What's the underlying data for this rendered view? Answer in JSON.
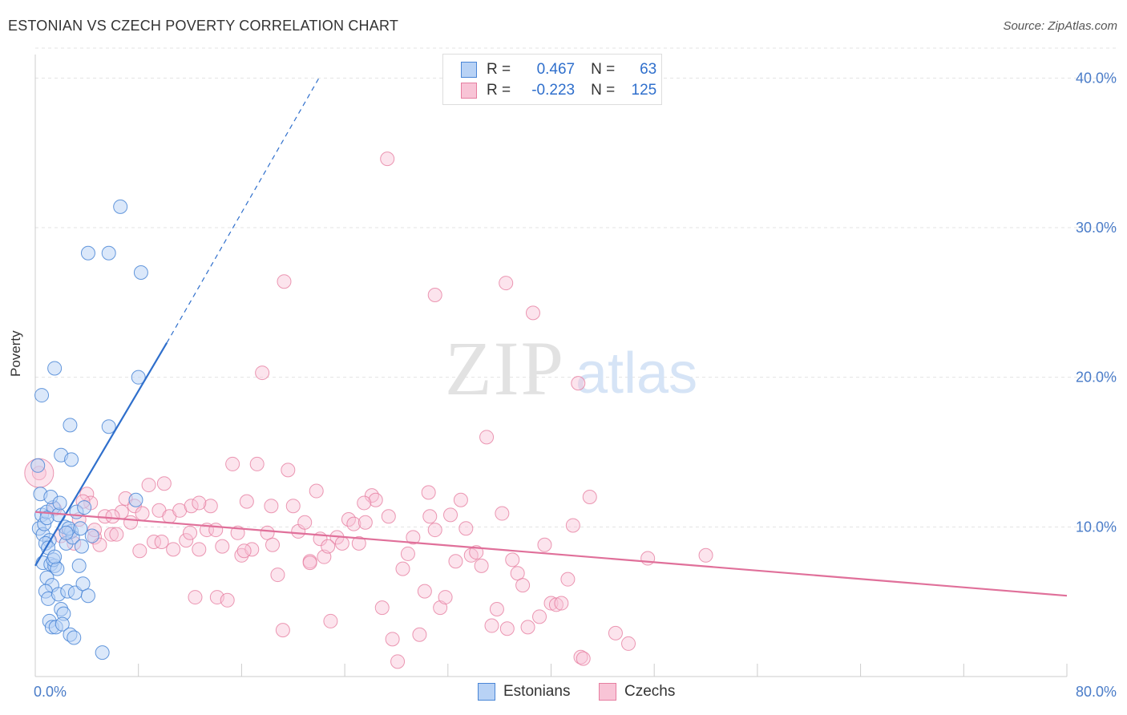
{
  "title": "ESTONIAN VS CZECH POVERTY CORRELATION CHART",
  "source": "Source: ZipAtlas.com",
  "watermark": {
    "zip": "ZIP",
    "atlas": "atlas"
  },
  "legend": {
    "rows": [
      {
        "r_label": "R =",
        "r_value": "0.467",
        "n_label": "N =",
        "n_value": "63"
      },
      {
        "r_label": "R =",
        "r_value": "-0.223",
        "n_label": "N =",
        "n_value": "125"
      }
    ]
  },
  "bottom_legend": {
    "estonians": "Estonians",
    "czechs": "Czechs"
  },
  "colors": {
    "estonian_fill": "#b8d2f5",
    "estonian_stroke": "#4a86d6",
    "estonian_line": "#2f6fcc",
    "czech_fill": "#f8c4d6",
    "czech_stroke": "#e67ea0",
    "czech_line": "#e0709a",
    "tick_text": "#4a7cc8",
    "grid": "#e3e3e3"
  },
  "chart_data": {
    "type": "scatter",
    "title": "ESTONIAN VS CZECH POVERTY CORRELATION CHART",
    "xlabel": "",
    "ylabel": "Poverty",
    "xlim": [
      0,
      80
    ],
    "ylim": [
      0,
      42
    ],
    "x_tick_labels": [
      "0.0%",
      "80.0%"
    ],
    "y_ticks": [
      10,
      20,
      30,
      40
    ],
    "y_tick_labels": [
      "10.0%",
      "20.0%",
      "30.0%",
      "40.0%"
    ],
    "grid": true,
    "legend_placement": "top-center",
    "series": [
      {
        "name": "Estonians",
        "points": [
          [
            0.2,
            14.1
          ],
          [
            0.4,
            12.2
          ],
          [
            0.5,
            10.8
          ],
          [
            0.3,
            9.9
          ],
          [
            0.6,
            9.5
          ],
          [
            0.7,
            10.2
          ],
          [
            0.9,
            11.0
          ],
          [
            1.1,
            9.1
          ],
          [
            0.8,
            8.9
          ],
          [
            1.0,
            8.6
          ],
          [
            0.6,
            7.6
          ],
          [
            1.2,
            7.5
          ],
          [
            1.5,
            7.4
          ],
          [
            1.4,
            7.8
          ],
          [
            1.7,
            7.2
          ],
          [
            0.9,
            6.6
          ],
          [
            1.3,
            6.1
          ],
          [
            0.8,
            5.7
          ],
          [
            1.0,
            5.2
          ],
          [
            1.8,
            5.5
          ],
          [
            2.0,
            4.5
          ],
          [
            2.2,
            4.2
          ],
          [
            1.1,
            3.7
          ],
          [
            1.3,
            3.3
          ],
          [
            1.6,
            3.3
          ],
          [
            2.1,
            3.5
          ],
          [
            2.7,
            2.8
          ],
          [
            3.0,
            2.6
          ],
          [
            1.4,
            11.3
          ],
          [
            1.8,
            10.8
          ],
          [
            2.3,
            10.0
          ],
          [
            2.8,
            9.7
          ],
          [
            3.2,
            11.0
          ],
          [
            3.8,
            11.3
          ],
          [
            2.4,
            8.9
          ],
          [
            2.9,
            9.3
          ],
          [
            3.6,
            8.7
          ],
          [
            4.4,
            9.4
          ],
          [
            3.4,
            7.4
          ],
          [
            2.5,
            5.7
          ],
          [
            3.1,
            5.6
          ],
          [
            3.7,
            6.2
          ],
          [
            4.1,
            5.4
          ],
          [
            2.0,
            14.8
          ],
          [
            2.8,
            14.5
          ],
          [
            0.5,
            18.8
          ],
          [
            2.7,
            16.8
          ],
          [
            5.7,
            16.7
          ],
          [
            1.5,
            20.6
          ],
          [
            8.0,
            20.0
          ],
          [
            4.1,
            28.3
          ],
          [
            5.7,
            28.3
          ],
          [
            6.6,
            31.4
          ],
          [
            8.2,
            27.0
          ],
          [
            7.8,
            11.8
          ],
          [
            5.2,
            1.6
          ],
          [
            1.5,
            8.0
          ],
          [
            0.9,
            10.6
          ],
          [
            1.2,
            12.0
          ],
          [
            2.6,
            9.9
          ],
          [
            3.5,
            9.9
          ],
          [
            1.9,
            11.6
          ],
          [
            2.4,
            9.6
          ]
        ],
        "trend": {
          "x": [
            0.0,
            10.2
          ],
          "y": [
            7.4,
            22.3
          ],
          "dash_to": [
            22.0,
            40.0
          ]
        }
      },
      {
        "name": "Czechs",
        "points": [
          [
            0.3,
            13.6
          ],
          [
            1.5,
            11.2
          ],
          [
            2.0,
            9.4
          ],
          [
            2.6,
            9.6
          ],
          [
            3.0,
            8.9
          ],
          [
            3.4,
            10.5
          ],
          [
            4.0,
            12.2
          ],
          [
            4.3,
            11.6
          ],
          [
            4.6,
            9.3
          ],
          [
            5.0,
            8.8
          ],
          [
            5.4,
            10.7
          ],
          [
            5.9,
            9.5
          ],
          [
            6.3,
            9.5
          ],
          [
            6.7,
            11.0
          ],
          [
            7.0,
            11.9
          ],
          [
            7.4,
            10.3
          ],
          [
            7.7,
            11.4
          ],
          [
            8.1,
            8.4
          ],
          [
            8.3,
            10.9
          ],
          [
            8.8,
            12.8
          ],
          [
            9.2,
            9.0
          ],
          [
            9.6,
            11.1
          ],
          [
            10.0,
            12.9
          ],
          [
            10.4,
            10.7
          ],
          [
            10.7,
            8.5
          ],
          [
            11.2,
            11.1
          ],
          [
            11.7,
            9.1
          ],
          [
            12.1,
            11.4
          ],
          [
            12.4,
            5.3
          ],
          [
            12.7,
            8.5
          ],
          [
            13.3,
            9.8
          ],
          [
            13.6,
            11.4
          ],
          [
            14.1,
            5.3
          ],
          [
            14.5,
            8.7
          ],
          [
            14.9,
            5.1
          ],
          [
            15.3,
            14.2
          ],
          [
            15.7,
            9.6
          ],
          [
            16.0,
            8.1
          ],
          [
            16.4,
            11.7
          ],
          [
            16.8,
            8.5
          ],
          [
            17.2,
            14.2
          ],
          [
            17.6,
            20.3
          ],
          [
            18.0,
            9.6
          ],
          [
            18.4,
            8.8
          ],
          [
            18.8,
            6.8
          ],
          [
            19.2,
            3.1
          ],
          [
            19.6,
            13.8
          ],
          [
            20.0,
            11.4
          ],
          [
            20.4,
            9.7
          ],
          [
            20.9,
            10.3
          ],
          [
            21.3,
            7.7
          ],
          [
            21.8,
            12.4
          ],
          [
            22.1,
            9.2
          ],
          [
            22.4,
            8.0
          ],
          [
            22.9,
            3.7
          ],
          [
            23.4,
            9.3
          ],
          [
            23.8,
            8.9
          ],
          [
            24.3,
            10.5
          ],
          [
            24.7,
            10.2
          ],
          [
            25.1,
            8.9
          ],
          [
            25.6,
            10.3
          ],
          [
            26.1,
            12.1
          ],
          [
            26.4,
            11.8
          ],
          [
            26.9,
            4.6
          ],
          [
            27.3,
            34.6
          ],
          [
            27.7,
            2.5
          ],
          [
            28.1,
            1.0
          ],
          [
            28.5,
            7.2
          ],
          [
            28.9,
            8.2
          ],
          [
            29.3,
            9.3
          ],
          [
            29.8,
            2.8
          ],
          [
            30.2,
            5.7
          ],
          [
            30.6,
            10.7
          ],
          [
            31.0,
            9.8
          ],
          [
            31.4,
            4.6
          ],
          [
            31.8,
            5.3
          ],
          [
            32.2,
            10.8
          ],
          [
            32.6,
            7.7
          ],
          [
            33.0,
            11.8
          ],
          [
            33.4,
            9.9
          ],
          [
            33.8,
            8.1
          ],
          [
            34.2,
            8.3
          ],
          [
            34.6,
            7.4
          ],
          [
            35.0,
            16.0
          ],
          [
            35.4,
            3.4
          ],
          [
            35.8,
            4.5
          ],
          [
            36.2,
            10.9
          ],
          [
            36.6,
            3.2
          ],
          [
            37.0,
            7.8
          ],
          [
            37.4,
            6.9
          ],
          [
            37.8,
            6.1
          ],
          [
            38.2,
            3.3
          ],
          [
            38.6,
            24.3
          ],
          [
            39.1,
            4.0
          ],
          [
            39.5,
            8.8
          ],
          [
            40.0,
            4.9
          ],
          [
            40.4,
            4.8
          ],
          [
            40.8,
            4.9
          ],
          [
            41.3,
            6.5
          ],
          [
            41.7,
            10.1
          ],
          [
            42.1,
            19.6
          ],
          [
            42.3,
            1.3
          ],
          [
            42.5,
            1.2
          ],
          [
            43.0,
            12.0
          ],
          [
            45.0,
            2.9
          ],
          [
            46.0,
            2.2
          ],
          [
            47.5,
            7.9
          ],
          [
            52.0,
            8.1
          ],
          [
            36.5,
            26.3
          ],
          [
            19.3,
            26.4
          ],
          [
            31.0,
            25.5
          ],
          [
            9.8,
            9.0
          ],
          [
            12.0,
            9.6
          ],
          [
            14.0,
            9.8
          ],
          [
            6.0,
            10.7
          ],
          [
            3.7,
            11.7
          ],
          [
            4.6,
            9.8
          ],
          [
            22.7,
            8.7
          ],
          [
            25.5,
            11.6
          ],
          [
            30.5,
            12.3
          ],
          [
            12.7,
            11.6
          ],
          [
            21.3,
            7.6
          ],
          [
            27.4,
            10.7
          ],
          [
            16.2,
            8.4
          ],
          [
            18.3,
            11.4
          ]
        ],
        "trend": {
          "x": [
            0.0,
            80.0
          ],
          "y": [
            11.0,
            5.4
          ]
        }
      }
    ]
  }
}
